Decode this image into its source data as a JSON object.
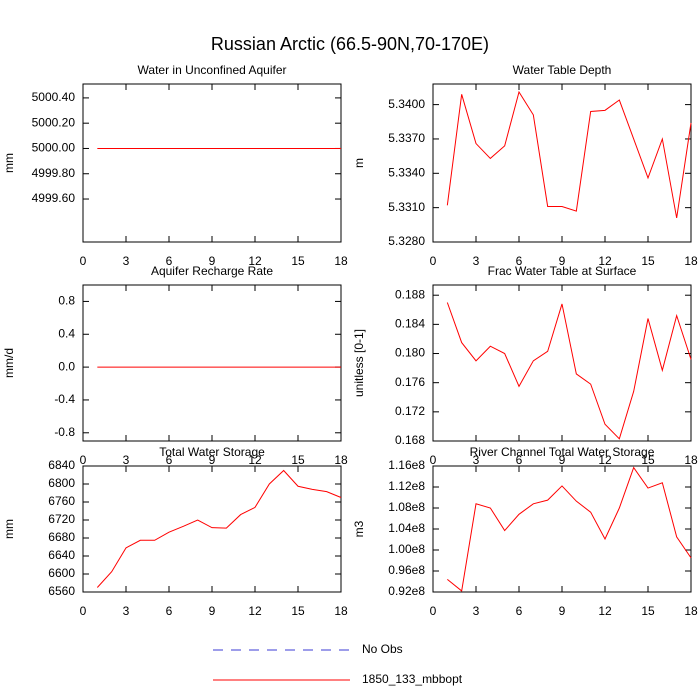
{
  "title": "Russian Arctic (66.5-90N,70-170E)",
  "legend": [
    {
      "name": "No Obs",
      "color": "#3b3bd6",
      "dash": true
    },
    {
      "name": "1850_133_mbbopt",
      "color": "#ff0000",
      "dash": false
    }
  ],
  "chart_data": [
    {
      "type": "line",
      "title": "Water in Unconfined Aquifer",
      "ylabel": "mm",
      "x": [
        1,
        2,
        3,
        4,
        5,
        6,
        7,
        8,
        9,
        10,
        11,
        12,
        13,
        14,
        15,
        16,
        17,
        18
      ],
      "series": [
        {
          "color": "#ff0000",
          "values": [
            5000,
            5000,
            5000,
            5000,
            5000,
            5000,
            5000,
            5000,
            5000,
            5000,
            5000,
            5000,
            5000,
            5000,
            5000,
            5000,
            5000,
            5000
          ]
        }
      ],
      "xlim": [
        0,
        18
      ],
      "xticks": [
        0,
        3,
        6,
        9,
        12,
        15,
        18
      ],
      "ylim": [
        4999.26,
        5000.51
      ],
      "yticks": [
        {
          "value": 4999.6,
          "label": "4999.60"
        },
        {
          "value": 4999.8,
          "label": "4999.80"
        },
        {
          "value": 5000,
          "label": "5000.00"
        },
        {
          "value": 5000.2,
          "label": "5000.20"
        },
        {
          "value": 5000.4,
          "label": "5000.40"
        }
      ]
    },
    {
      "type": "line",
      "title": "Water Table Depth",
      "ylabel": "m",
      "x": [
        1,
        2,
        3,
        4,
        5,
        6,
        7,
        8,
        9,
        10,
        11,
        12,
        13,
        14,
        15,
        16,
        17,
        18
      ],
      "series": [
        {
          "color": "#ff0000",
          "values": [
            5.3312,
            5.3409,
            5.3366,
            5.3353,
            5.3364,
            5.3411,
            5.3391,
            5.3311,
            5.3311,
            5.3307,
            5.3394,
            5.3395,
            5.3404,
            5.337,
            5.3336,
            5.337,
            5.3301,
            5.3384
          ]
        }
      ],
      "xlim": [
        0,
        18
      ],
      "xticks": [
        0,
        3,
        6,
        9,
        12,
        15,
        18
      ],
      "ylim": [
        5.328,
        5.3418
      ],
      "yticks": [
        {
          "value": 5.328,
          "label": "5.3280"
        },
        {
          "value": 5.331,
          "label": "5.3310"
        },
        {
          "value": 5.334,
          "label": "5.3340"
        },
        {
          "value": 5.337,
          "label": "5.3370"
        },
        {
          "value": 5.34,
          "label": "5.3400"
        }
      ]
    },
    {
      "type": "line",
      "title": "Aquifer Recharge Rate",
      "ylabel": "mm/d",
      "x": [
        1,
        2,
        3,
        4,
        5,
        6,
        7,
        8,
        9,
        10,
        11,
        12,
        13,
        14,
        15,
        16,
        17,
        18
      ],
      "series": [
        {
          "color": "#ff0000",
          "values": [
            0,
            0,
            0,
            0,
            0,
            0,
            0,
            0,
            0,
            0,
            0,
            0,
            0,
            0,
            0,
            0,
            0,
            0
          ]
        }
      ],
      "xlim": [
        0,
        18
      ],
      "xticks": [
        0,
        3,
        6,
        9,
        12,
        15,
        18
      ],
      "ylim": [
        -0.9,
        1.0
      ],
      "yticks": [
        -0.8,
        -0.4,
        {
          "value": 0,
          "label": "0.0"
        },
        0.4,
        0.8
      ]
    },
    {
      "type": "line",
      "title": "Frac Water Table at Surface",
      "ylabel": "unitless [0-1]",
      "x": [
        1,
        2,
        3,
        4,
        5,
        6,
        7,
        8,
        9,
        10,
        11,
        12,
        13,
        14,
        15,
        16,
        17,
        18
      ],
      "series": [
        {
          "color": "#ff0000",
          "values": [
            0.187,
            0.1815,
            0.179,
            0.181,
            0.18,
            0.1755,
            0.179,
            0.1803,
            0.1868,
            0.1772,
            0.1758,
            0.1703,
            0.1683,
            0.1748,
            0.1848,
            0.1777,
            0.1852,
            0.1792
          ]
        }
      ],
      "xlim": [
        0,
        18
      ],
      "xticks": [
        0,
        3,
        6,
        9,
        12,
        15,
        18
      ],
      "ylim": [
        0.168,
        0.1894
      ],
      "yticks": [
        0.168,
        0.172,
        0.176,
        {
          "value": 0.18,
          "label": "0.180"
        },
        0.184,
        0.188
      ]
    },
    {
      "type": "line",
      "title": "Total Water Storage",
      "ylabel": "mm",
      "x": [
        1,
        2,
        3,
        4,
        5,
        6,
        7,
        8,
        9,
        10,
        11,
        12,
        13,
        14,
        15,
        16,
        17,
        18
      ],
      "series": [
        {
          "color": "#ff0000",
          "values": [
            6570,
            6605,
            6658,
            6675,
            6675,
            6693,
            6706,
            6720,
            6703,
            6702,
            6732,
            6748,
            6800,
            6830,
            6795,
            6788,
            6783,
            6770
          ]
        }
      ],
      "xlim": [
        0,
        18
      ],
      "xticks": [
        0,
        3,
        6,
        9,
        12,
        15,
        18
      ],
      "ylim": [
        6560,
        6840
      ],
      "yticks": [
        6560,
        6600,
        6640,
        6680,
        6720,
        6760,
        6800,
        6840
      ]
    },
    {
      "type": "line",
      "title": "River Channel Total Water Storage",
      "ylabel": "m3",
      "x": [
        1,
        2,
        3,
        4,
        5,
        6,
        7,
        8,
        9,
        10,
        11,
        12,
        13,
        14,
        15,
        16,
        17,
        18
      ],
      "series": [
        {
          "color": "#ff0000",
          "values": [
            94400000,
            92200000,
            108800000,
            108000000,
            103700000,
            106800000,
            108800000,
            109500000,
            112200000,
            109300000,
            107200000,
            102100000,
            108000000,
            115700000,
            111800000,
            112800000,
            102500000,
            98500000
          ]
        }
      ],
      "xlim": [
        0,
        18
      ],
      "xticks": [
        0,
        3,
        6,
        9,
        12,
        15,
        18
      ],
      "ylim": [
        92000000,
        116000000
      ],
      "yticks": [
        {
          "value": 92000000,
          "label": "0.92e8"
        },
        {
          "value": 96000000,
          "label": "0.96e8"
        },
        {
          "value": 100000000,
          "label": "1.00e8"
        },
        {
          "value": 104000000,
          "label": "1.04e8"
        },
        {
          "value": 108000000,
          "label": "1.08e8"
        },
        {
          "value": 112000000,
          "label": "1.12e8"
        },
        {
          "value": 116000000,
          "label": "1.16e8"
        }
      ]
    }
  ]
}
